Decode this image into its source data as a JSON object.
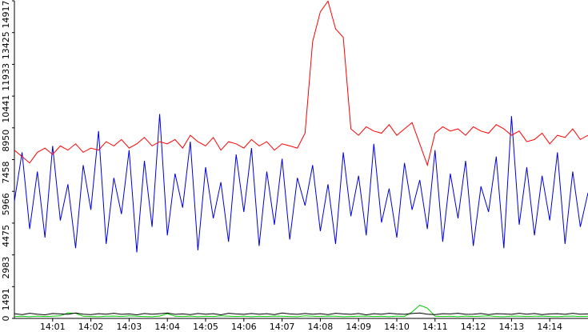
{
  "chart_data": {
    "type": "line",
    "x": [
      0,
      0.2,
      0.4,
      0.6,
      0.8,
      1,
      1.2,
      1.4,
      1.6,
      1.8,
      2,
      2.2,
      2.4,
      2.6,
      2.8,
      3,
      3.2,
      3.4,
      3.6,
      3.8,
      4,
      4.2,
      4.4,
      4.6,
      4.8,
      5,
      5.2,
      5.4,
      5.6,
      5.8,
      6,
      6.2,
      6.4,
      6.6,
      6.8,
      7,
      7.2,
      7.4,
      7.6,
      7.8,
      8,
      8.2,
      8.4,
      8.6,
      8.8,
      9,
      9.2,
      9.4,
      9.6,
      9.8,
      10,
      10.2,
      10.4,
      10.6,
      10.8,
      11,
      11.2,
      11.4,
      11.6,
      11.8,
      12,
      12.2,
      12.4,
      12.6,
      12.8,
      13,
      13.2,
      13.4,
      13.6,
      13.8,
      14,
      14.2,
      14.4,
      14.6,
      14.8,
      15
    ],
    "xlim": [
      0,
      15
    ],
    "xticks": [
      {
        "value": 1,
        "label": "14:01"
      },
      {
        "value": 2,
        "label": "14:02"
      },
      {
        "value": 3,
        "label": "14:03"
      },
      {
        "value": 4,
        "label": "14:04"
      },
      {
        "value": 5,
        "label": "14:05"
      },
      {
        "value": 6,
        "label": "14:06"
      },
      {
        "value": 7,
        "label": "14:07"
      },
      {
        "value": 8,
        "label": "14:08"
      },
      {
        "value": 9,
        "label": "14:09"
      },
      {
        "value": 10,
        "label": "14:10"
      },
      {
        "value": 11,
        "label": "14:11"
      },
      {
        "value": 12,
        "label": "14:12"
      },
      {
        "value": 13,
        "label": "14:13"
      },
      {
        "value": 14,
        "label": "14:14"
      }
    ],
    "ylim": [
      0,
      14917
    ],
    "yticks": [
      0,
      1491,
      2983,
      4475,
      5966,
      7458,
      8950,
      10441,
      11933,
      13425,
      14917
    ],
    "series": [
      {
        "color": "#ff0000",
        "values": [
          7900,
          7600,
          7300,
          7800,
          8000,
          7700,
          8100,
          7900,
          8200,
          7800,
          8000,
          7900,
          8300,
          8100,
          8400,
          8000,
          8200,
          8500,
          8100,
          8300,
          8200,
          8400,
          8000,
          8600,
          8300,
          8100,
          8500,
          7900,
          8300,
          8200,
          8000,
          8400,
          8100,
          8300,
          7900,
          8200,
          8100,
          8000,
          8700,
          13000,
          14400,
          14900,
          13600,
          13200,
          8900,
          8600,
          9000,
          8800,
          8700,
          9100,
          8600,
          8900,
          9200,
          8200,
          7200,
          8700,
          9000,
          8800,
          8900,
          8600,
          9000,
          8800,
          8700,
          9100,
          8900,
          8600,
          8800,
          8300,
          8400,
          8700,
          8200,
          8600,
          8500,
          8900,
          8400,
          8600
        ]
      },
      {
        "color": "#0000dd",
        "values": [
          5500,
          7800,
          4200,
          6900,
          3800,
          8100,
          4600,
          6300,
          3300,
          7200,
          5100,
          8800,
          3500,
          6600,
          4900,
          7900,
          3100,
          7400,
          4300,
          9600,
          3900,
          6800,
          5200,
          8300,
          3200,
          7100,
          4700,
          6400,
          3600,
          7700,
          5000,
          8000,
          3400,
          6900,
          4400,
          7500,
          3700,
          6600,
          5300,
          7200,
          4100,
          6300,
          3500,
          7800,
          4800,
          6700,
          3900,
          8200,
          4500,
          6100,
          3800,
          7300,
          5100,
          6500,
          4200,
          7900,
          3600,
          6800,
          4700,
          7400,
          3400,
          6200,
          5000,
          7600,
          3300,
          9500,
          4400,
          7100,
          3900,
          6700,
          4600,
          7800,
          3500,
          6900,
          4300,
          5900
        ]
      },
      {
        "color": "#000000",
        "values": [
          220,
          180,
          240,
          200,
          170,
          230,
          210,
          190,
          250,
          200,
          180,
          220,
          200,
          240,
          190,
          210,
          170,
          230,
          200,
          220,
          250,
          190,
          210,
          180,
          230,
          200,
          220,
          170,
          240,
          210,
          190,
          230,
          200,
          220,
          180,
          250,
          210,
          190,
          230,
          200,
          220,
          180,
          240,
          210,
          190,
          230,
          170,
          220,
          200,
          240,
          210,
          190,
          230,
          250,
          200,
          180,
          220,
          210,
          240,
          190,
          200,
          230,
          180,
          220,
          210,
          190,
          240,
          200,
          230,
          180,
          210,
          220,
          190,
          240,
          200,
          210
        ]
      },
      {
        "color": "#00cc00",
        "values": [
          90,
          100,
          80,
          110,
          90,
          100,
          120,
          260,
          240,
          100,
          90,
          80,
          100,
          110,
          90,
          120,
          100,
          90,
          80,
          110,
          220,
          100,
          90,
          110,
          80,
          100,
          90,
          120,
          100,
          90,
          110,
          80,
          100,
          90,
          110,
          100,
          90,
          80,
          120,
          100,
          90,
          110,
          100,
          80,
          90,
          100,
          110,
          90,
          100,
          80,
          110,
          90,
          300,
          620,
          480,
          110,
          90,
          100,
          80,
          110,
          90,
          100,
          120,
          90,
          80,
          110,
          100,
          90,
          100,
          110,
          90,
          80,
          100,
          110,
          90,
          100
        ]
      }
    ]
  }
}
